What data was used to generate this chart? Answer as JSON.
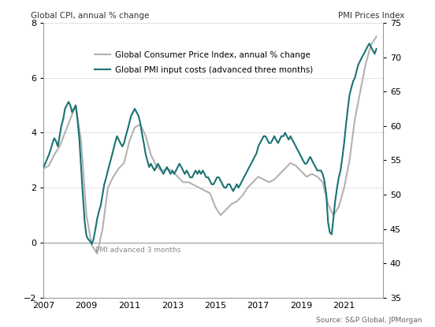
{
  "title_left": "Global CPI, annual % change",
  "title_right": "PMI Prices Index",
  "source": "Source: S&P Global, JPMorgan",
  "annotation": "PMI advanced 3 months",
  "legend": [
    "Global Consumer Price Index, annual % change",
    "Global PMI input costs (advanced three months)"
  ],
  "cpi_color": "#b2b2b2",
  "pmi_color": "#1a7272",
  "ylim_left": [
    -2,
    8
  ],
  "ylim_right": [
    35,
    75
  ],
  "xlim": [
    2007.0,
    2022.8
  ],
  "yticks_left": [
    -2,
    0,
    2,
    4,
    6,
    8
  ],
  "yticks_right": [
    35,
    40,
    45,
    50,
    55,
    60,
    65,
    70,
    75
  ],
  "xticks": [
    2007,
    2009,
    2011,
    2013,
    2015,
    2017,
    2019,
    2021
  ],
  "cpi_data": [
    [
      2007.0,
      2.7
    ],
    [
      2007.25,
      2.8
    ],
    [
      2007.5,
      3.2
    ],
    [
      2007.75,
      3.5
    ],
    [
      2008.0,
      4.0
    ],
    [
      2008.25,
      4.5
    ],
    [
      2008.5,
      5.0
    ],
    [
      2008.75,
      3.7
    ],
    [
      2009.0,
      1.0
    ],
    [
      2009.25,
      -0.1
    ],
    [
      2009.5,
      -0.4
    ],
    [
      2009.75,
      0.5
    ],
    [
      2010.0,
      2.0
    ],
    [
      2010.25,
      2.4
    ],
    [
      2010.5,
      2.7
    ],
    [
      2010.75,
      2.9
    ],
    [
      2011.0,
      3.7
    ],
    [
      2011.25,
      4.2
    ],
    [
      2011.5,
      4.3
    ],
    [
      2011.75,
      3.9
    ],
    [
      2012.0,
      3.2
    ],
    [
      2012.25,
      2.8
    ],
    [
      2012.5,
      2.6
    ],
    [
      2012.75,
      2.7
    ],
    [
      2013.0,
      2.6
    ],
    [
      2013.25,
      2.4
    ],
    [
      2013.5,
      2.2
    ],
    [
      2013.75,
      2.2
    ],
    [
      2014.0,
      2.1
    ],
    [
      2014.25,
      2.0
    ],
    [
      2014.5,
      1.9
    ],
    [
      2014.75,
      1.8
    ],
    [
      2015.0,
      1.3
    ],
    [
      2015.25,
      1.0
    ],
    [
      2015.5,
      1.2
    ],
    [
      2015.75,
      1.4
    ],
    [
      2016.0,
      1.5
    ],
    [
      2016.25,
      1.7
    ],
    [
      2016.5,
      2.0
    ],
    [
      2016.75,
      2.2
    ],
    [
      2017.0,
      2.4
    ],
    [
      2017.25,
      2.3
    ],
    [
      2017.5,
      2.2
    ],
    [
      2017.75,
      2.3
    ],
    [
      2018.0,
      2.5
    ],
    [
      2018.25,
      2.7
    ],
    [
      2018.5,
      2.9
    ],
    [
      2018.75,
      2.8
    ],
    [
      2019.0,
      2.6
    ],
    [
      2019.25,
      2.4
    ],
    [
      2019.5,
      2.5
    ],
    [
      2019.75,
      2.4
    ],
    [
      2020.0,
      2.2
    ],
    [
      2020.25,
      1.4
    ],
    [
      2020.5,
      1.0
    ],
    [
      2020.75,
      1.3
    ],
    [
      2021.0,
      2.0
    ],
    [
      2021.25,
      3.0
    ],
    [
      2021.5,
      4.5
    ],
    [
      2021.75,
      5.5
    ],
    [
      2022.0,
      6.5
    ],
    [
      2022.25,
      7.2
    ],
    [
      2022.5,
      7.5
    ]
  ],
  "pmi_data": [
    [
      2007.0,
      54.0
    ],
    [
      2007.08,
      54.5
    ],
    [
      2007.17,
      55.2
    ],
    [
      2007.25,
      55.8
    ],
    [
      2007.33,
      56.5
    ],
    [
      2007.42,
      57.5
    ],
    [
      2007.5,
      58.2
    ],
    [
      2007.58,
      57.8
    ],
    [
      2007.67,
      57.0
    ],
    [
      2007.75,
      58.5
    ],
    [
      2007.83,
      60.0
    ],
    [
      2007.92,
      61.0
    ],
    [
      2008.0,
      62.5
    ],
    [
      2008.08,
      63.0
    ],
    [
      2008.17,
      63.5
    ],
    [
      2008.25,
      63.0
    ],
    [
      2008.33,
      62.0
    ],
    [
      2008.42,
      62.5
    ],
    [
      2008.5,
      63.0
    ],
    [
      2008.58,
      61.0
    ],
    [
      2008.67,
      58.0
    ],
    [
      2008.75,
      54.0
    ],
    [
      2008.83,
      50.0
    ],
    [
      2008.92,
      46.0
    ],
    [
      2009.0,
      44.0
    ],
    [
      2009.08,
      43.5
    ],
    [
      2009.17,
      43.2
    ],
    [
      2009.25,
      42.8
    ],
    [
      2009.33,
      43.5
    ],
    [
      2009.42,
      45.0
    ],
    [
      2009.5,
      46.5
    ],
    [
      2009.58,
      47.5
    ],
    [
      2009.67,
      48.5
    ],
    [
      2009.75,
      50.0
    ],
    [
      2009.83,
      51.5
    ],
    [
      2009.92,
      52.5
    ],
    [
      2010.0,
      53.5
    ],
    [
      2010.08,
      54.5
    ],
    [
      2010.17,
      55.5
    ],
    [
      2010.25,
      56.5
    ],
    [
      2010.33,
      57.5
    ],
    [
      2010.42,
      58.5
    ],
    [
      2010.5,
      58.0
    ],
    [
      2010.58,
      57.5
    ],
    [
      2010.67,
      57.0
    ],
    [
      2010.75,
      57.5
    ],
    [
      2010.83,
      58.5
    ],
    [
      2010.92,
      59.5
    ],
    [
      2011.0,
      60.5
    ],
    [
      2011.08,
      61.5
    ],
    [
      2011.17,
      62.0
    ],
    [
      2011.25,
      62.5
    ],
    [
      2011.33,
      62.0
    ],
    [
      2011.42,
      61.5
    ],
    [
      2011.5,
      60.5
    ],
    [
      2011.58,
      59.0
    ],
    [
      2011.67,
      57.5
    ],
    [
      2011.75,
      56.0
    ],
    [
      2011.83,
      55.0
    ],
    [
      2011.92,
      54.0
    ],
    [
      2012.0,
      54.5
    ],
    [
      2012.08,
      54.0
    ],
    [
      2012.17,
      53.5
    ],
    [
      2012.25,
      54.0
    ],
    [
      2012.33,
      54.5
    ],
    [
      2012.42,
      54.0
    ],
    [
      2012.5,
      53.5
    ],
    [
      2012.58,
      53.0
    ],
    [
      2012.67,
      53.5
    ],
    [
      2012.75,
      54.0
    ],
    [
      2012.83,
      53.5
    ],
    [
      2012.92,
      53.0
    ],
    [
      2013.0,
      53.5
    ],
    [
      2013.08,
      53.0
    ],
    [
      2013.17,
      53.5
    ],
    [
      2013.25,
      54.0
    ],
    [
      2013.33,
      54.5
    ],
    [
      2013.42,
      54.0
    ],
    [
      2013.5,
      53.5
    ],
    [
      2013.58,
      53.0
    ],
    [
      2013.67,
      53.5
    ],
    [
      2013.75,
      53.0
    ],
    [
      2013.83,
      52.5
    ],
    [
      2013.92,
      52.5
    ],
    [
      2014.0,
      53.0
    ],
    [
      2014.08,
      53.5
    ],
    [
      2014.17,
      53.0
    ],
    [
      2014.25,
      53.5
    ],
    [
      2014.33,
      53.0
    ],
    [
      2014.42,
      53.5
    ],
    [
      2014.5,
      53.0
    ],
    [
      2014.58,
      52.5
    ],
    [
      2014.67,
      52.5
    ],
    [
      2014.75,
      52.0
    ],
    [
      2014.83,
      51.5
    ],
    [
      2014.92,
      51.5
    ],
    [
      2015.0,
      52.0
    ],
    [
      2015.08,
      52.5
    ],
    [
      2015.17,
      52.5
    ],
    [
      2015.25,
      52.0
    ],
    [
      2015.33,
      51.5
    ],
    [
      2015.42,
      51.0
    ],
    [
      2015.5,
      51.0
    ],
    [
      2015.58,
      51.5
    ],
    [
      2015.67,
      51.5
    ],
    [
      2015.75,
      51.0
    ],
    [
      2015.83,
      50.5
    ],
    [
      2015.92,
      51.0
    ],
    [
      2016.0,
      51.5
    ],
    [
      2016.08,
      51.0
    ],
    [
      2016.17,
      51.5
    ],
    [
      2016.25,
      52.0
    ],
    [
      2016.33,
      52.5
    ],
    [
      2016.42,
      53.0
    ],
    [
      2016.5,
      53.5
    ],
    [
      2016.58,
      54.0
    ],
    [
      2016.67,
      54.5
    ],
    [
      2016.75,
      55.0
    ],
    [
      2016.83,
      55.5
    ],
    [
      2016.92,
      56.0
    ],
    [
      2017.0,
      57.0
    ],
    [
      2017.08,
      57.5
    ],
    [
      2017.17,
      58.0
    ],
    [
      2017.25,
      58.5
    ],
    [
      2017.33,
      58.5
    ],
    [
      2017.42,
      58.0
    ],
    [
      2017.5,
      57.5
    ],
    [
      2017.58,
      57.5
    ],
    [
      2017.67,
      58.0
    ],
    [
      2017.75,
      58.5
    ],
    [
      2017.83,
      58.0
    ],
    [
      2017.92,
      57.5
    ],
    [
      2018.0,
      58.0
    ],
    [
      2018.08,
      58.5
    ],
    [
      2018.17,
      58.5
    ],
    [
      2018.25,
      59.0
    ],
    [
      2018.33,
      58.5
    ],
    [
      2018.42,
      58.0
    ],
    [
      2018.5,
      58.5
    ],
    [
      2018.58,
      58.0
    ],
    [
      2018.67,
      57.5
    ],
    [
      2018.75,
      57.0
    ],
    [
      2018.83,
      56.5
    ],
    [
      2018.92,
      56.0
    ],
    [
      2019.0,
      55.5
    ],
    [
      2019.08,
      55.0
    ],
    [
      2019.17,
      54.5
    ],
    [
      2019.25,
      54.5
    ],
    [
      2019.33,
      55.0
    ],
    [
      2019.42,
      55.5
    ],
    [
      2019.5,
      55.0
    ],
    [
      2019.58,
      54.5
    ],
    [
      2019.67,
      54.0
    ],
    [
      2019.75,
      53.5
    ],
    [
      2019.83,
      53.5
    ],
    [
      2019.92,
      53.5
    ],
    [
      2020.0,
      53.0
    ],
    [
      2020.08,
      52.0
    ],
    [
      2020.17,
      50.0
    ],
    [
      2020.25,
      46.0
    ],
    [
      2020.33,
      44.5
    ],
    [
      2020.42,
      44.2
    ],
    [
      2020.5,
      46.5
    ],
    [
      2020.58,
      49.0
    ],
    [
      2020.67,
      51.0
    ],
    [
      2020.75,
      52.5
    ],
    [
      2020.83,
      53.5
    ],
    [
      2020.92,
      55.5
    ],
    [
      2021.0,
      57.5
    ],
    [
      2021.08,
      60.0
    ],
    [
      2021.17,
      62.5
    ],
    [
      2021.25,
      64.5
    ],
    [
      2021.33,
      65.5
    ],
    [
      2021.42,
      66.5
    ],
    [
      2021.5,
      67.0
    ],
    [
      2021.58,
      68.0
    ],
    [
      2021.67,
      69.0
    ],
    [
      2021.75,
      69.5
    ],
    [
      2021.83,
      70.0
    ],
    [
      2021.92,
      70.5
    ],
    [
      2022.0,
      71.0
    ],
    [
      2022.08,
      71.5
    ],
    [
      2022.17,
      72.0
    ],
    [
      2022.25,
      71.5
    ],
    [
      2022.33,
      71.0
    ],
    [
      2022.42,
      70.5
    ],
    [
      2022.5,
      71.2
    ]
  ]
}
